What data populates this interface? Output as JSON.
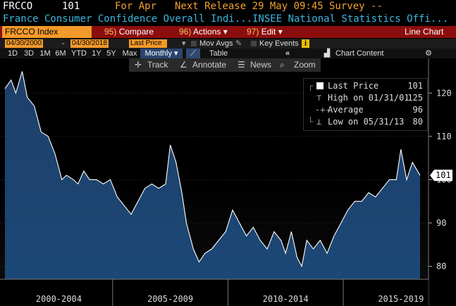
{
  "header": {
    "ticker": "FRCCO",
    "last": "101",
    "for_label": "For Apr",
    "next_release": "Next Release 29 May 09:45",
    "survey": "Survey --",
    "description": "France Consumer Confidence Overall Indi...",
    "source": "INSEE National Statistics Offi..."
  },
  "toolbar": {
    "ticker_field": "FRCCO Index",
    "compare_num": "95)",
    "compare": "Compare",
    "actions_num": "96)",
    "actions": "Actions",
    "edit_num": "97)",
    "edit": "Edit",
    "chart_type": "Line Chart"
  },
  "range": {
    "start": "04/30/2000",
    "end": "04/30/2018",
    "field": "Last Price",
    "mov_avgs": "Mov Avgs",
    "key_events": "Key Events"
  },
  "periods": {
    "items": [
      "1D",
      "3D",
      "1M",
      "6M",
      "YTD",
      "1Y",
      "5Y",
      "Max"
    ],
    "frequency": "Monthly",
    "table": "Table",
    "chart_content": "Chart Content"
  },
  "tools": {
    "track": "Track",
    "annotate": "Annotate",
    "news": "News",
    "zoom": "Zoom"
  },
  "legend": {
    "last_label": "Last Price",
    "last_value": "101",
    "high_label": "High on 01/31/01",
    "high_value": "125",
    "avg_label": "Average",
    "avg_value": "96",
    "low_label": "Low on 05/31/13",
    "low_value": "80"
  },
  "colors": {
    "accent_orange": "#f39a2a",
    "toolbar_red": "#8c0d0d",
    "series_line": "#ffffff",
    "area_fill": "#1d4a7a"
  },
  "chart_data": {
    "type": "area",
    "xlabel": "",
    "ylabel": "",
    "ylim": [
      77,
      128
    ],
    "yticks": [
      80,
      90,
      100,
      110,
      120
    ],
    "ytick_labels": [
      "80",
      "90",
      "100",
      "110",
      "120"
    ],
    "x_periods": [
      "2000-2004",
      "2005-2009",
      "2010-2014",
      "2015-2019"
    ],
    "last_value_label": "101",
    "series": [
      {
        "x": [
          2000.33,
          2000.6,
          2000.8,
          2001.08,
          2001.3,
          2001.6,
          2001.9,
          2002.2,
          2002.5,
          2002.8,
          2003.0,
          2003.3,
          2003.5,
          2003.75,
          2004.0,
          2004.3,
          2004.6,
          2004.9,
          2005.2,
          2005.5,
          2005.8,
          2006.1,
          2006.4,
          2006.7,
          2007.0,
          2007.3,
          2007.5,
          2007.75,
          2008.0,
          2008.2,
          2008.5,
          2008.75,
          2009.0,
          2009.3,
          2009.6,
          2009.9,
          2010.2,
          2010.5,
          2010.8,
          2011.1,
          2011.4,
          2011.7,
          2012.0,
          2012.3,
          2012.5,
          2012.75,
          2013.0,
          2013.2,
          2013.42,
          2013.7,
          2014.0,
          2014.3,
          2014.6,
          2014.9,
          2015.2,
          2015.5,
          2015.8,
          2016.1,
          2016.4,
          2016.7,
          2017.0,
          2017.3,
          2017.5,
          2017.75,
          2018.0,
          2018.33
        ],
        "y": [
          121,
          123,
          120,
          125,
          119,
          117,
          111,
          110,
          106,
          100,
          101,
          100,
          99,
          102,
          100,
          100,
          99,
          100,
          96,
          94,
          92,
          95,
          98,
          99,
          98,
          99,
          108,
          104,
          97,
          90,
          84,
          81,
          83,
          84,
          86,
          88,
          93,
          90,
          87,
          89,
          86,
          84,
          88,
          86,
          83,
          88,
          82,
          80,
          86,
          84,
          86,
          83,
          87,
          90,
          93,
          95,
          95,
          97,
          96,
          98,
          100,
          100,
          107,
          100,
          104,
          101
        ]
      }
    ]
  }
}
